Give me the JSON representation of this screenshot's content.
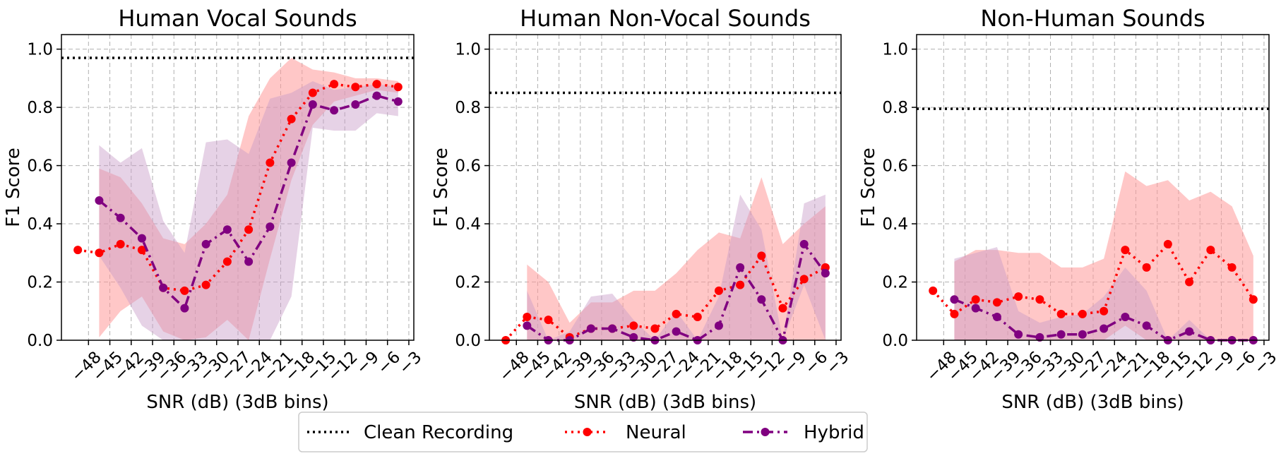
{
  "legend": {
    "items": [
      {
        "label": "Clean Recording",
        "style": "dotted",
        "color": "#000000",
        "marker": false
      },
      {
        "label": "Neural",
        "style": "dotted",
        "color": "#ff0000",
        "marker": true
      },
      {
        "label": "Hybrid",
        "style": "dashdot",
        "color": "#800080",
        "marker": true
      }
    ],
    "placement": "bottom-center"
  },
  "colors": {
    "neural": "#ff0000",
    "neural_band": "#ff9999",
    "hybrid": "#800080",
    "hybrid_band": "#c89bc8",
    "clean": "#000000"
  },
  "chart_data": [
    {
      "type": "line",
      "title": "Human Vocal Sounds",
      "xlabel": "SNR (dB) (3dB bins)",
      "ylabel": "F1 Score",
      "xticks": [
        -48,
        -45,
        -42,
        -39,
        -36,
        -33,
        -30,
        -27,
        -24,
        -21,
        -18,
        -15,
        -12,
        -9,
        -6,
        -3
      ],
      "xlim": [
        -51.8,
        -2.3
      ],
      "yticks": [
        0.0,
        0.2,
        0.4,
        0.6,
        0.8,
        1.0
      ],
      "ylim": [
        0.0,
        1.05
      ],
      "grid": true,
      "clean_recording": 0.97,
      "series": [
        {
          "name": "Neural",
          "x": [
            -49.5,
            -46.5,
            -43.5,
            -40.5,
            -37.5,
            -34.5,
            -31.5,
            -28.5,
            -25.5,
            -22.5,
            -19.5,
            -16.5,
            -13.5,
            -10.5,
            -7.5,
            -4.5
          ],
          "y": [
            0.31,
            0.3,
            0.33,
            0.31,
            0.18,
            0.17,
            0.19,
            0.27,
            0.38,
            0.61,
            0.76,
            0.85,
            0.88,
            0.87,
            0.88,
            0.87
          ],
          "lower": [
            null,
            0.01,
            0.1,
            0.15,
            0.03,
            0.0,
            0.01,
            0.07,
            0.0,
            0.28,
            0.55,
            0.74,
            0.82,
            0.84,
            0.86,
            0.85
          ],
          "upper": [
            null,
            0.59,
            0.56,
            0.47,
            0.35,
            0.33,
            0.4,
            0.5,
            0.77,
            0.9,
            0.97,
            0.93,
            0.92,
            0.9,
            0.9,
            0.89
          ]
        },
        {
          "name": "Hybrid",
          "x": [
            -46.5,
            -43.5,
            -40.5,
            -37.5,
            -34.5,
            -31.5,
            -28.5,
            -25.5,
            -22.5,
            -19.5,
            -16.5,
            -13.5,
            -10.5,
            -7.5,
            -4.5
          ],
          "y": [
            0.48,
            0.42,
            0.35,
            0.18,
            0.11,
            0.33,
            0.38,
            0.27,
            0.39,
            0.61,
            0.81,
            0.79,
            0.81,
            0.84,
            0.82
          ],
          "lower": [
            0.29,
            0.18,
            0.05,
            0.0,
            0.0,
            0.0,
            0.0,
            0.0,
            0.0,
            0.15,
            0.73,
            0.72,
            0.72,
            0.78,
            0.77
          ],
          "upper": [
            0.67,
            0.61,
            0.66,
            0.41,
            0.3,
            0.68,
            0.69,
            0.64,
            0.83,
            0.85,
            0.89,
            0.86,
            0.87,
            0.88,
            0.87
          ]
        }
      ]
    },
    {
      "type": "line",
      "title": "Human Non-Vocal Sounds",
      "xlabel": "SNR (dB) (3dB bins)",
      "ylabel": "F1 Score",
      "xticks": [
        -48,
        -45,
        -42,
        -39,
        -36,
        -33,
        -30,
        -27,
        -24,
        -21,
        -18,
        -15,
        -12,
        -9,
        -6,
        -3
      ],
      "xlim": [
        -51.8,
        -2.3
      ],
      "yticks": [
        0.0,
        0.2,
        0.4,
        0.6,
        0.8,
        1.0
      ],
      "ylim": [
        0.0,
        1.05
      ],
      "grid": true,
      "clean_recording": 0.85,
      "series": [
        {
          "name": "Neural",
          "x": [
            -49.5,
            -46.5,
            -43.5,
            -40.5,
            -37.5,
            -34.5,
            -31.5,
            -28.5,
            -25.5,
            -22.5,
            -19.5,
            -16.5,
            -13.5,
            -10.5,
            -7.5,
            -4.5
          ],
          "y": [
            0.0,
            0.08,
            0.07,
            0.01,
            0.04,
            0.04,
            0.05,
            0.04,
            0.09,
            0.08,
            0.17,
            0.19,
            0.29,
            0.11,
            0.21,
            0.25
          ],
          "lower": [
            null,
            0.0,
            0.0,
            0.0,
            0.0,
            0.0,
            0.0,
            0.0,
            0.0,
            0.0,
            0.0,
            0.0,
            0.0,
            0.0,
            0.0,
            0.0
          ],
          "upper": [
            null,
            0.26,
            0.2,
            0.06,
            0.13,
            0.13,
            0.17,
            0.17,
            0.23,
            0.31,
            0.37,
            0.35,
            0.56,
            0.33,
            0.4,
            0.46
          ]
        },
        {
          "name": "Hybrid",
          "x": [
            -46.5,
            -43.5,
            -40.5,
            -37.5,
            -34.5,
            -31.5,
            -28.5,
            -25.5,
            -22.5,
            -19.5,
            -16.5,
            -13.5,
            -10.5,
            -7.5,
            -4.5
          ],
          "y": [
            0.05,
            0.0,
            0.0,
            0.04,
            0.04,
            0.01,
            0.0,
            0.03,
            0.0,
            0.05,
            0.25,
            0.14,
            0.0,
            0.33,
            0.23
          ],
          "lower": [
            0.0,
            0.0,
            0.0,
            0.0,
            0.0,
            0.0,
            0.0,
            0.0,
            0.0,
            0.0,
            0.0,
            0.0,
            0.0,
            0.19,
            0.0
          ],
          "upper": [
            0.17,
            0.0,
            0.03,
            0.15,
            0.16,
            0.07,
            0.0,
            0.1,
            0.0,
            0.15,
            0.5,
            0.38,
            0.0,
            0.47,
            0.5
          ]
        }
      ]
    },
    {
      "type": "line",
      "title": "Non-Human Sounds",
      "xlabel": "SNR (dB) (3dB bins)",
      "ylabel": "F1 Score",
      "xticks": [
        -48,
        -45,
        -42,
        -39,
        -36,
        -33,
        -30,
        -27,
        -24,
        -21,
        -18,
        -15,
        -12,
        -9,
        -6,
        -3
      ],
      "xlim": [
        -51.8,
        -2.3
      ],
      "yticks": [
        0.0,
        0.2,
        0.4,
        0.6,
        0.8,
        1.0
      ],
      "ylim": [
        0.0,
        1.05
      ],
      "grid": true,
      "clean_recording": 0.795,
      "series": [
        {
          "name": "Neural",
          "x": [
            -49.5,
            -46.5,
            -43.5,
            -40.5,
            -37.5,
            -34.5,
            -31.5,
            -28.5,
            -25.5,
            -22.5,
            -19.5,
            -16.5,
            -13.5,
            -10.5,
            -7.5,
            -4.5
          ],
          "y": [
            0.17,
            0.09,
            0.14,
            0.13,
            0.15,
            0.14,
            0.09,
            0.09,
            0.1,
            0.31,
            0.25,
            0.33,
            0.2,
            0.31,
            0.25,
            0.14
          ],
          "lower": [
            null,
            0.0,
            0.0,
            0.0,
            0.0,
            0.0,
            0.0,
            0.0,
            0.0,
            0.05,
            0.0,
            0.0,
            0.0,
            0.0,
            0.0,
            0.0
          ],
          "upper": [
            null,
            0.27,
            0.31,
            0.31,
            0.3,
            0.3,
            0.25,
            0.25,
            0.28,
            0.58,
            0.53,
            0.55,
            0.48,
            0.51,
            0.46,
            0.29
          ]
        },
        {
          "name": "Hybrid",
          "x": [
            -46.5,
            -43.5,
            -40.5,
            -37.5,
            -34.5,
            -31.5,
            -28.5,
            -25.5,
            -22.5,
            -19.5,
            -16.5,
            -13.5,
            -10.5,
            -7.5,
            -4.5
          ],
          "y": [
            0.14,
            0.11,
            0.08,
            0.02,
            0.01,
            0.02,
            0.02,
            0.04,
            0.08,
            0.05,
            0.0,
            0.03,
            0.0,
            0.0,
            0.0
          ],
          "lower": [
            0.0,
            0.0,
            0.0,
            0.0,
            0.0,
            0.0,
            0.0,
            0.0,
            0.0,
            0.0,
            0.0,
            0.0,
            0.0,
            0.0,
            0.0
          ],
          "upper": [
            0.28,
            0.3,
            0.32,
            0.1,
            0.06,
            0.08,
            0.09,
            0.15,
            0.25,
            0.17,
            0.0,
            0.07,
            0.0,
            0.0,
            0.0
          ]
        }
      ]
    }
  ]
}
